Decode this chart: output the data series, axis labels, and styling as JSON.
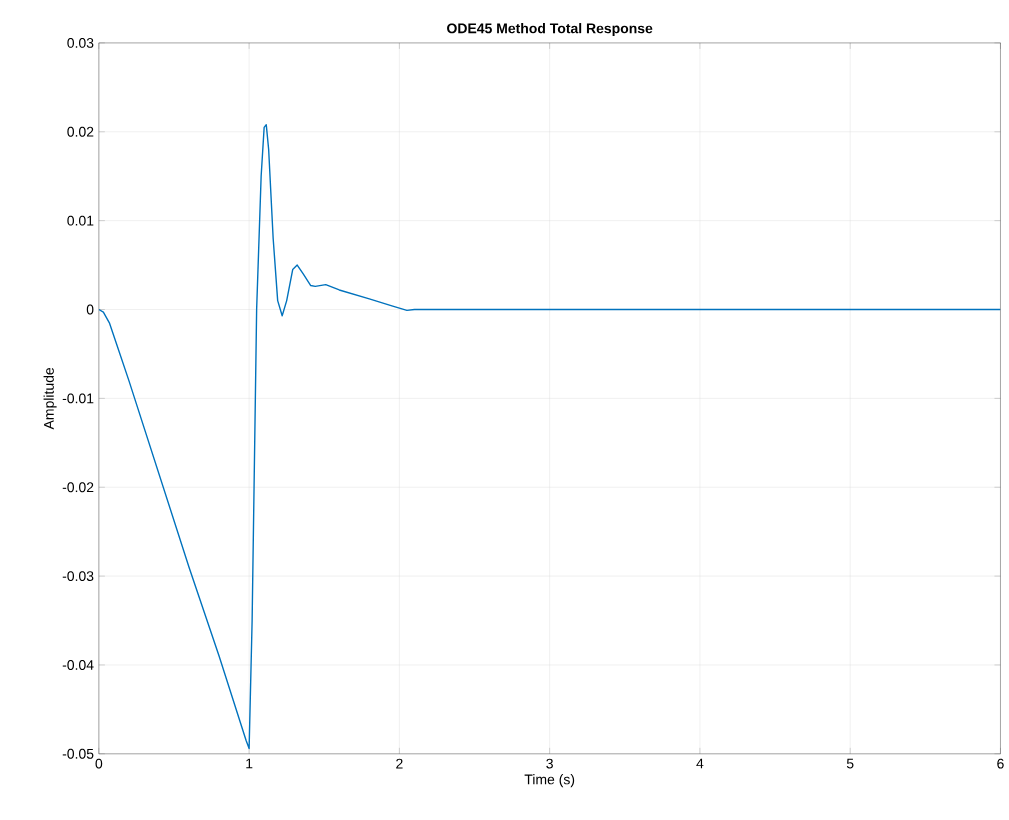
{
  "chart_data": {
    "type": "line",
    "title": "ODE45 Method Total Response",
    "xlabel": "Time (s)",
    "ylabel": "Amplitude",
    "x": [
      0,
      0.03,
      0.07,
      0.12,
      0.2,
      0.4,
      0.6,
      0.8,
      0.98,
      1.0,
      1.02,
      1.05,
      1.08,
      1.1,
      1.114,
      1.13,
      1.16,
      1.19,
      1.22,
      1.25,
      1.29,
      1.32,
      1.36,
      1.41,
      1.44,
      1.51,
      1.6,
      1.8,
      1.95,
      2.05,
      2.1,
      6
    ],
    "series": [
      {
        "color": "#0072bd",
        "values": [
          0,
          -0.0003,
          -0.0015,
          -0.004,
          -0.008,
          -0.0185,
          -0.029,
          -0.039,
          -0.0485,
          -0.0494,
          -0.035,
          0,
          0.015,
          0.0205,
          0.0208,
          0.018,
          0.008,
          0.001,
          -0.0007,
          0.001,
          0.0045,
          0.005,
          0.004,
          0.0027,
          0.0026,
          0.0028,
          0.0022,
          0.0012,
          0.0004,
          -0.0001,
          0,
          0
        ]
      }
    ],
    "xlim": [
      0,
      6
    ],
    "ylim": [
      -0.05,
      0.03
    ],
    "xticks": [
      0,
      1,
      2,
      3,
      4,
      5,
      6
    ],
    "yticks": [
      -0.05,
      -0.04,
      -0.03,
      -0.02,
      -0.01,
      0,
      0.01,
      0.02,
      0.03
    ],
    "grid": true,
    "marker": "none",
    "line_style": "solid"
  }
}
